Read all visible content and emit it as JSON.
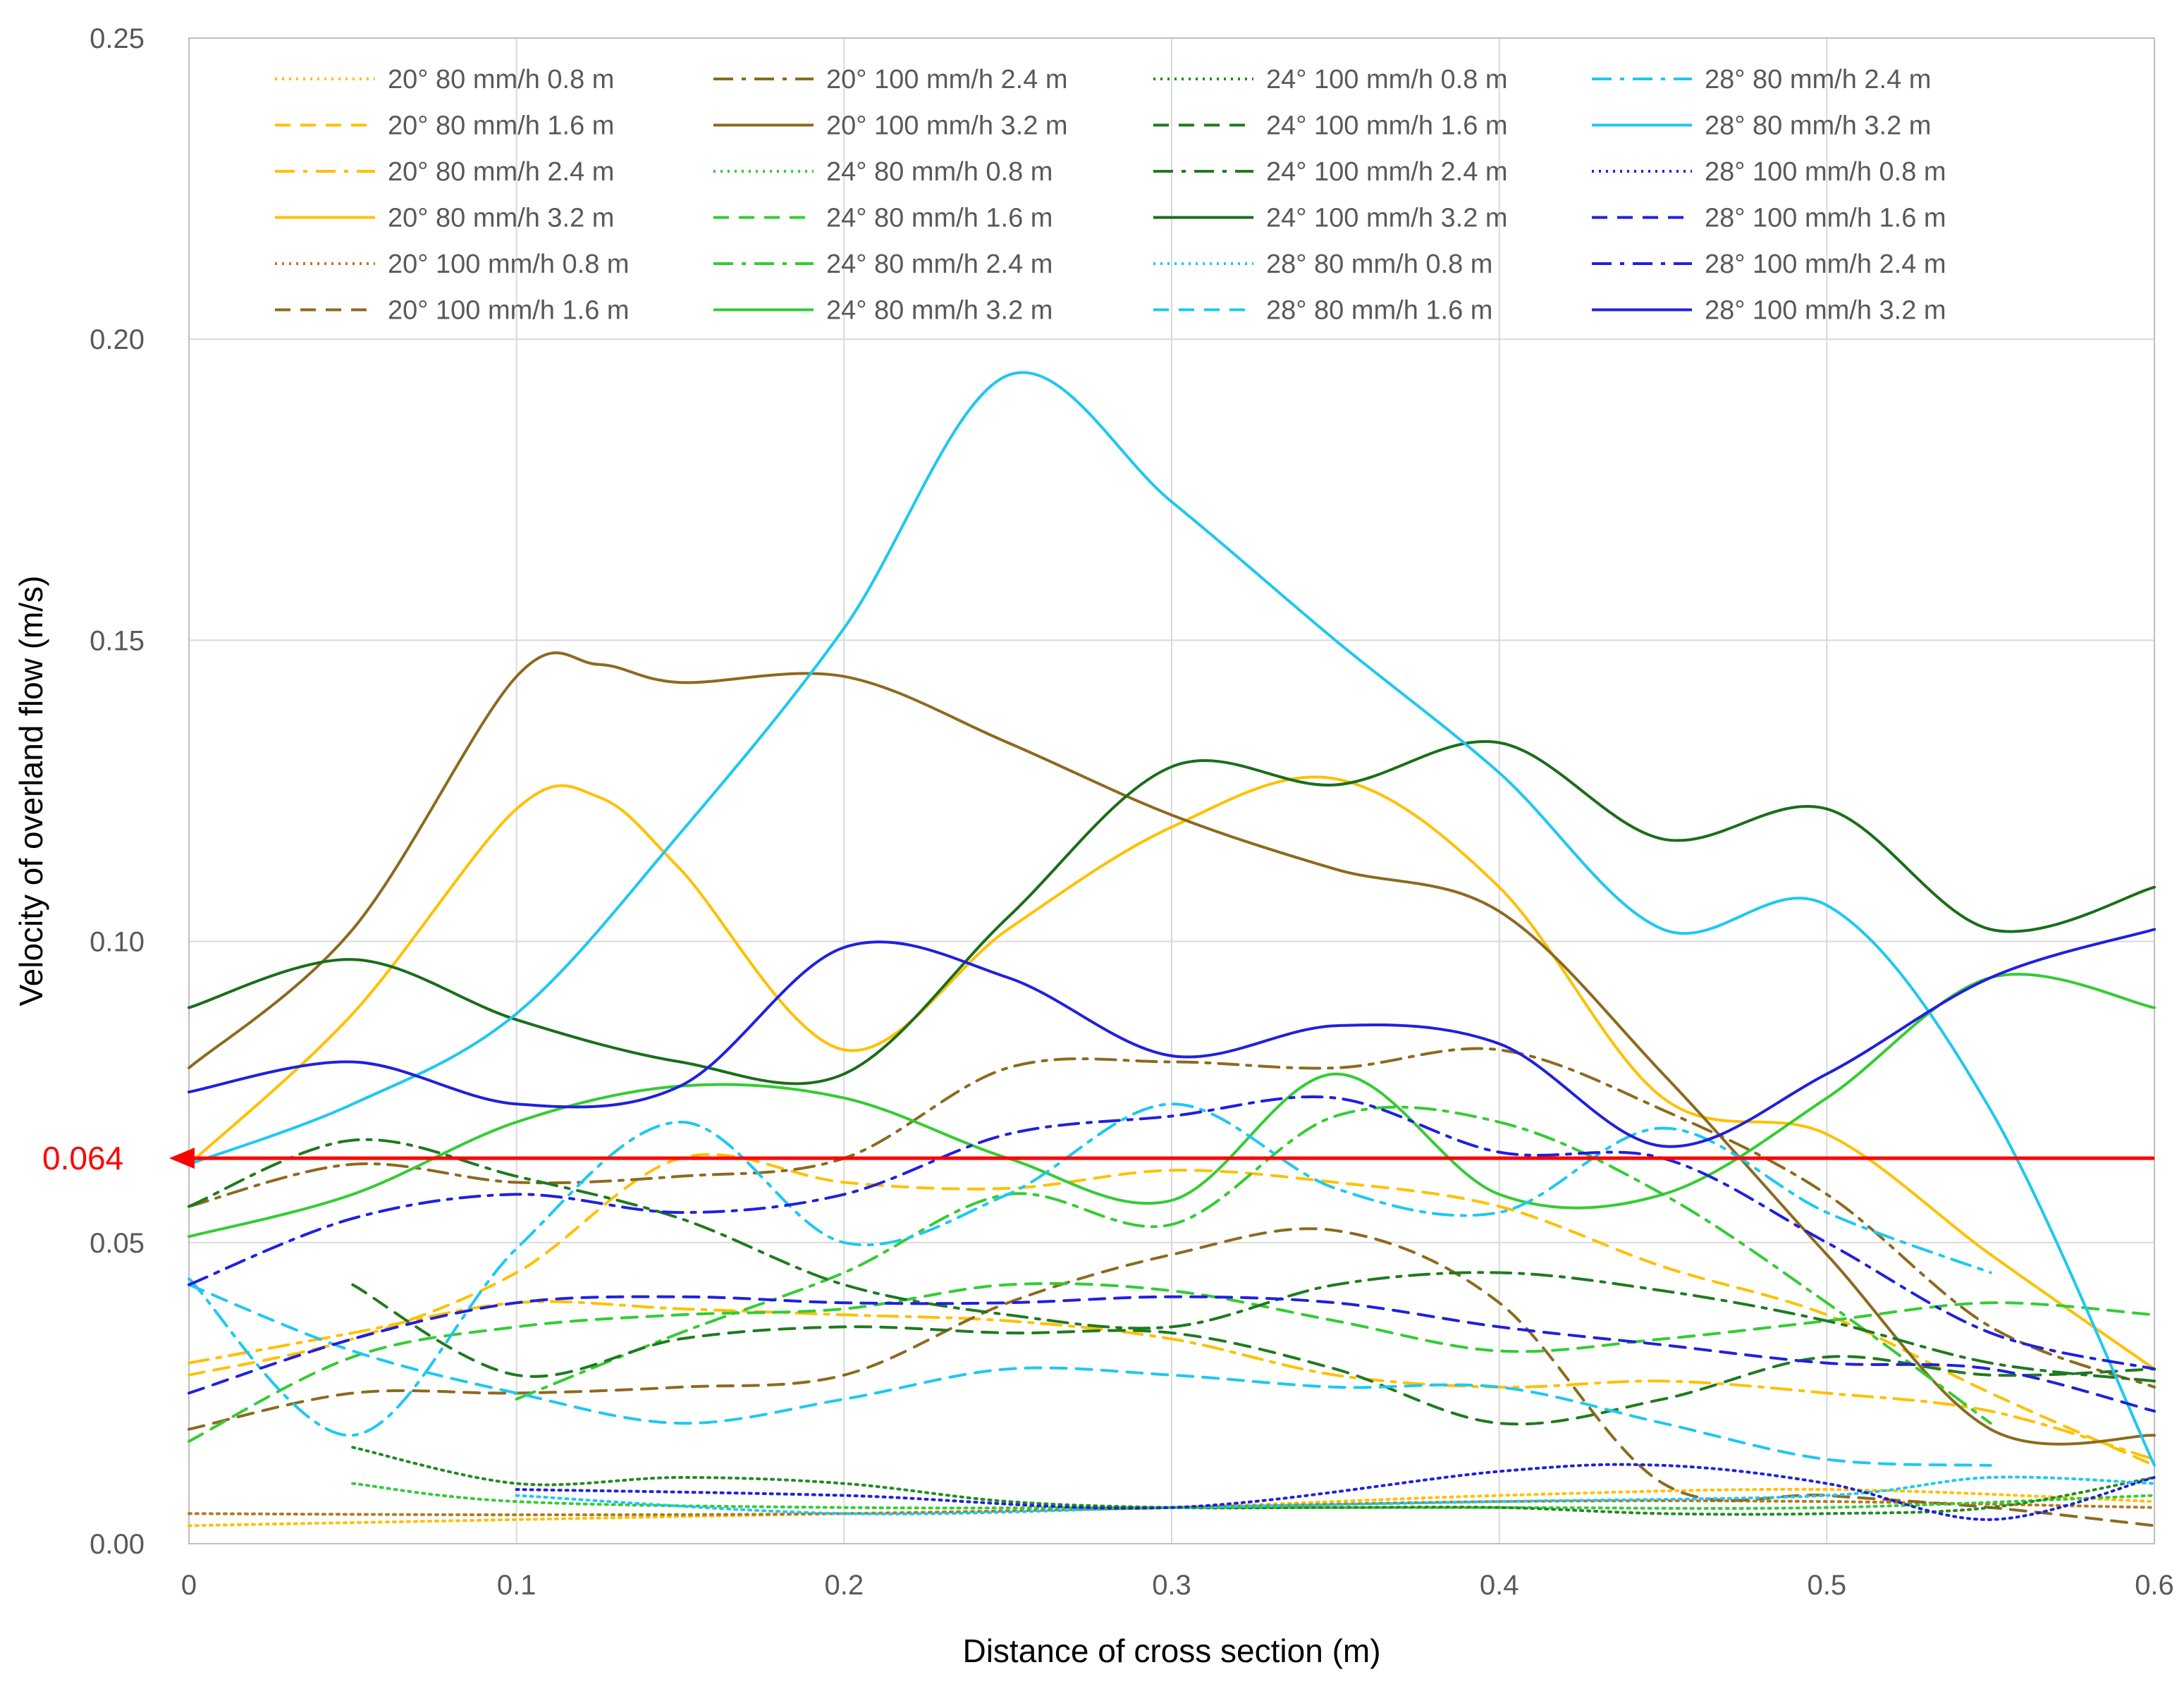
{
  "chart_data": {
    "type": "line",
    "title": "",
    "xlabel": "Distance of cross section (m)",
    "ylabel": "Velocity of overland flow (m/s)",
    "xlim": [
      0,
      0.6
    ],
    "ylim": [
      0,
      0.25
    ],
    "x_ticks": [
      "0",
      "0.1",
      "0.2",
      "0.3",
      "0.4",
      "0.5",
      "0.6"
    ],
    "y_ticks": [
      "0.00",
      "0.05",
      "0.10",
      "0.15",
      "0.20",
      "0.25"
    ],
    "grid": true,
    "legend_position": "top",
    "reference_line": {
      "value": 0.064,
      "label": "0.064",
      "color": "#ff0000"
    },
    "series": [
      {
        "name": "20° 80 mm/h 0.8 m",
        "color": "#ffc000",
        "dash": "dot",
        "x": [
          0,
          0.1,
          0.2,
          0.3,
          0.4,
          0.5,
          0.6
        ],
        "y": [
          0.003,
          0.004,
          0.005,
          0.006,
          0.008,
          0.009,
          0.007
        ]
      },
      {
        "name": "20° 80 mm/h 1.6 m",
        "color": "#ffc000",
        "dash": "dash",
        "x": [
          0,
          0.05,
          0.1,
          0.15,
          0.2,
          0.25,
          0.3,
          0.35,
          0.4,
          0.45,
          0.5,
          0.55,
          0.6
        ],
        "y": [
          0.028,
          0.034,
          0.045,
          0.064,
          0.06,
          0.059,
          0.062,
          0.06,
          0.056,
          0.046,
          0.038,
          0.025,
          0.013
        ]
      },
      {
        "name": "20° 80 mm/h 2.4 m",
        "color": "#ffc000",
        "dash": "dashdot",
        "x": [
          0,
          0.05,
          0.1,
          0.15,
          0.2,
          0.25,
          0.3,
          0.35,
          0.4,
          0.45,
          0.5,
          0.55,
          0.6
        ],
        "y": [
          0.03,
          0.035,
          0.04,
          0.039,
          0.038,
          0.037,
          0.034,
          0.028,
          0.026,
          0.027,
          0.025,
          0.022,
          0.014
        ]
      },
      {
        "name": "20° 80 mm/h 3.2 m",
        "color": "#ffc000",
        "dash": "solid",
        "x": [
          0,
          0.05,
          0.1,
          0.125,
          0.15,
          0.2,
          0.25,
          0.3,
          0.35,
          0.4,
          0.45,
          0.5,
          0.55,
          0.6
        ],
        "y": [
          0.063,
          0.088,
          0.122,
          0.124,
          0.112,
          0.082,
          0.102,
          0.119,
          0.127,
          0.109,
          0.074,
          0.068,
          0.048,
          0.029
        ]
      },
      {
        "name": "20° 100 mm/h 0.8 m",
        "color": "#b07c1e",
        "dash": "dot",
        "x": [
          0,
          0.1,
          0.2,
          0.3,
          0.4,
          0.5,
          0.6
        ],
        "y": [
          0.005,
          0.0048,
          0.005,
          0.006,
          0.007,
          0.007,
          0.006
        ]
      },
      {
        "name": "20° 100 mm/h 1.6 m",
        "color": "#8c6a1e",
        "dash": "dash",
        "x": [
          0,
          0.05,
          0.1,
          0.15,
          0.2,
          0.25,
          0.3,
          0.35,
          0.4,
          0.45,
          0.5,
          0.55,
          0.6
        ],
        "y": [
          0.019,
          0.025,
          0.025,
          0.026,
          0.028,
          0.04,
          0.048,
          0.052,
          0.04,
          0.01,
          0.008,
          0.006,
          0.003
        ]
      },
      {
        "name": "20° 100 mm/h 2.4 m",
        "color": "#8c6a1e",
        "dash": "dashdot",
        "x": [
          0,
          0.05,
          0.1,
          0.15,
          0.2,
          0.25,
          0.3,
          0.35,
          0.4,
          0.45,
          0.5,
          0.55,
          0.6
        ],
        "y": [
          0.056,
          0.063,
          0.06,
          0.061,
          0.064,
          0.079,
          0.08,
          0.079,
          0.082,
          0.072,
          0.058,
          0.036,
          0.026
        ]
      },
      {
        "name": "20° 100 mm/h 3.2 m",
        "color": "#8c6a1e",
        "dash": "solid",
        "x": [
          0,
          0.05,
          0.1,
          0.125,
          0.15,
          0.2,
          0.25,
          0.3,
          0.35,
          0.4,
          0.45,
          0.5,
          0.55,
          0.6
        ],
        "y": [
          0.079,
          0.102,
          0.144,
          0.146,
          0.143,
          0.144,
          0.133,
          0.121,
          0.112,
          0.105,
          0.078,
          0.048,
          0.019,
          0.018
        ]
      },
      {
        "name": "24° 80 mm/h 0.8 m",
        "color": "#33cc33",
        "dash": "dot",
        "x": [
          0.05,
          0.1,
          0.2,
          0.3,
          0.4,
          0.5,
          0.6
        ],
        "y": [
          0.01,
          0.007,
          0.006,
          0.006,
          0.006,
          0.006,
          0.008
        ]
      },
      {
        "name": "24° 80 mm/h 1.6 m",
        "color": "#33cc33",
        "dash": "dash",
        "x": [
          0,
          0.05,
          0.1,
          0.15,
          0.2,
          0.25,
          0.3,
          0.35,
          0.4,
          0.45,
          0.5,
          0.55,
          0.6
        ],
        "y": [
          0.017,
          0.031,
          0.036,
          0.038,
          0.039,
          0.043,
          0.042,
          0.037,
          0.032,
          0.034,
          0.037,
          0.04,
          0.038
        ]
      },
      {
        "name": "24° 80 mm/h 2.4 m",
        "color": "#33cc33",
        "dash": "dashdot",
        "x": [
          0.1,
          0.15,
          0.2,
          0.25,
          0.3,
          0.35,
          0.4,
          0.45,
          0.5,
          0.55
        ],
        "y": [
          0.024,
          0.035,
          0.045,
          0.058,
          0.053,
          0.071,
          0.07,
          0.058,
          0.04,
          0.02
        ]
      },
      {
        "name": "24° 80 mm/h 3.2 m",
        "color": "#33cc33",
        "dash": "solid",
        "x": [
          0,
          0.05,
          0.1,
          0.15,
          0.2,
          0.25,
          0.3,
          0.35,
          0.4,
          0.45,
          0.5,
          0.55,
          0.6
        ],
        "y": [
          0.051,
          0.058,
          0.07,
          0.076,
          0.074,
          0.064,
          0.057,
          0.078,
          0.058,
          0.058,
          0.074,
          0.094,
          0.089
        ]
      },
      {
        "name": "24° 100 mm/h 0.8 m",
        "color": "#228b22",
        "dash": "dot",
        "x": [
          0.05,
          0.1,
          0.15,
          0.2,
          0.25,
          0.3,
          0.35,
          0.4,
          0.45,
          0.5,
          0.55,
          0.6
        ],
        "y": [
          0.016,
          0.01,
          0.011,
          0.01,
          0.007,
          0.006,
          0.006,
          0.006,
          0.005,
          0.005,
          0.006,
          0.011
        ]
      },
      {
        "name": "24° 100 mm/h 1.6 m",
        "color": "#1f7a1f",
        "dash": "dash",
        "x": [
          0.05,
          0.1,
          0.15,
          0.2,
          0.25,
          0.3,
          0.35,
          0.4,
          0.45,
          0.5,
          0.55,
          0.6
        ],
        "y": [
          0.043,
          0.028,
          0.034,
          0.036,
          0.035,
          0.035,
          0.029,
          0.02,
          0.024,
          0.031,
          0.028,
          0.029
        ]
      },
      {
        "name": "24° 100 mm/h 2.4 m",
        "color": "#1f7a1f",
        "dash": "dashdot",
        "x": [
          0,
          0.05,
          0.1,
          0.15,
          0.2,
          0.25,
          0.3,
          0.35,
          0.4,
          0.45,
          0.5,
          0.55,
          0.6
        ],
        "y": [
          0.056,
          0.067,
          0.061,
          0.054,
          0.043,
          0.038,
          0.036,
          0.043,
          0.045,
          0.042,
          0.037,
          0.03,
          0.027
        ]
      },
      {
        "name": "24° 100 mm/h 3.2 m",
        "color": "#1a6e1a",
        "dash": "solid",
        "x": [
          0,
          0.05,
          0.1,
          0.15,
          0.2,
          0.25,
          0.3,
          0.35,
          0.4,
          0.45,
          0.5,
          0.55,
          0.6
        ],
        "y": [
          0.089,
          0.097,
          0.087,
          0.08,
          0.078,
          0.104,
          0.129,
          0.126,
          0.133,
          0.117,
          0.122,
          0.102,
          0.109
        ]
      },
      {
        "name": "28° 80 mm/h 0.8 m",
        "color": "#1ec8f0",
        "dash": "dot",
        "x": [
          0.1,
          0.2,
          0.3,
          0.4,
          0.5,
          0.55,
          0.6
        ],
        "y": [
          0.008,
          0.005,
          0.006,
          0.007,
          0.008,
          0.011,
          0.01
        ]
      },
      {
        "name": "28° 80 mm/h 1.6 m",
        "color": "#1ec8f0",
        "dash": "dash",
        "x": [
          0,
          0.05,
          0.1,
          0.15,
          0.2,
          0.25,
          0.3,
          0.35,
          0.4,
          0.45,
          0.5,
          0.55
        ],
        "y": [
          0.043,
          0.032,
          0.025,
          0.02,
          0.024,
          0.029,
          0.028,
          0.026,
          0.026,
          0.02,
          0.014,
          0.013
        ]
      },
      {
        "name": "28° 80 mm/h 2.4 m",
        "color": "#1ec8f0",
        "dash": "dashdot",
        "x": [
          0,
          0.05,
          0.1,
          0.15,
          0.2,
          0.25,
          0.3,
          0.35,
          0.4,
          0.45,
          0.5,
          0.55
        ],
        "y": [
          0.044,
          0.018,
          0.049,
          0.07,
          0.05,
          0.058,
          0.073,
          0.059,
          0.055,
          0.069,
          0.055,
          0.045
        ]
      },
      {
        "name": "28° 80 mm/h 3.2 m",
        "color": "#1ec8f0",
        "dash": "solid",
        "x": [
          0,
          0.05,
          0.1,
          0.15,
          0.2,
          0.25,
          0.3,
          0.35,
          0.4,
          0.45,
          0.5,
          0.55,
          0.6
        ],
        "y": [
          0.063,
          0.073,
          0.088,
          0.118,
          0.152,
          0.194,
          0.173,
          0.15,
          0.128,
          0.102,
          0.106,
          0.072,
          0.013
        ]
      },
      {
        "name": "28° 100 mm/h 0.8 m",
        "color": "#2020dd",
        "dash": "dot",
        "x": [
          0.1,
          0.2,
          0.3,
          0.4,
          0.45,
          0.5,
          0.55,
          0.6
        ],
        "y": [
          0.009,
          0.008,
          0.006,
          0.012,
          0.013,
          0.01,
          0.004,
          0.011
        ]
      },
      {
        "name": "28° 100 mm/h 1.6 m",
        "color": "#2020dd",
        "dash": "dash",
        "x": [
          0,
          0.05,
          0.1,
          0.15,
          0.2,
          0.25,
          0.3,
          0.35,
          0.4,
          0.45,
          0.5,
          0.55,
          0.6
        ],
        "y": [
          0.025,
          0.034,
          0.04,
          0.041,
          0.04,
          0.04,
          0.041,
          0.04,
          0.036,
          0.033,
          0.03,
          0.029,
          0.022
        ]
      },
      {
        "name": "28° 100 mm/h 2.4 m",
        "color": "#2020dd",
        "dash": "dashdot",
        "x": [
          0,
          0.05,
          0.1,
          0.15,
          0.2,
          0.25,
          0.3,
          0.35,
          0.4,
          0.45,
          0.5,
          0.55,
          0.6
        ],
        "y": [
          0.043,
          0.054,
          0.058,
          0.055,
          0.058,
          0.068,
          0.071,
          0.074,
          0.065,
          0.064,
          0.05,
          0.035,
          0.029
        ]
      },
      {
        "name": "28° 100 mm/h 3.2 m",
        "color": "#2020dd",
        "dash": "solid",
        "x": [
          0,
          0.05,
          0.1,
          0.15,
          0.2,
          0.25,
          0.3,
          0.35,
          0.4,
          0.45,
          0.5,
          0.55,
          0.6
        ],
        "y": [
          0.075,
          0.08,
          0.073,
          0.076,
          0.099,
          0.094,
          0.081,
          0.086,
          0.083,
          0.066,
          0.078,
          0.094,
          0.102
        ]
      }
    ]
  }
}
